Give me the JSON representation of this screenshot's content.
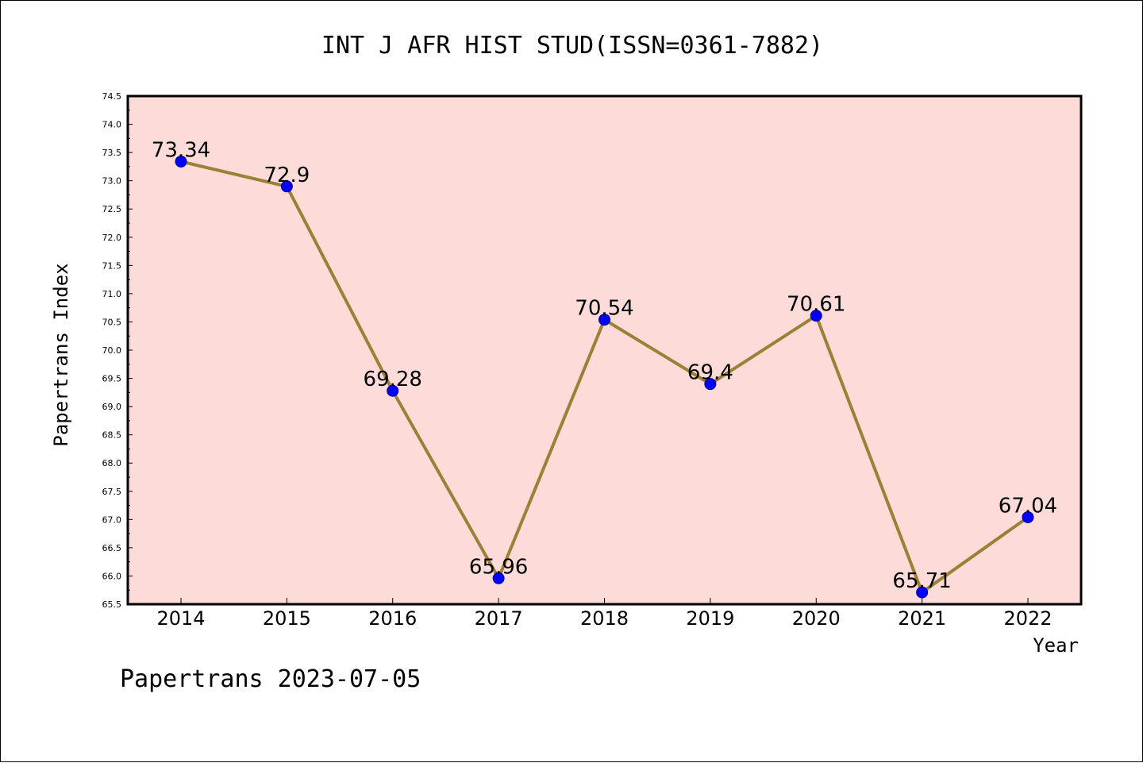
{
  "chart_data": {
    "type": "line",
    "title": "INT J AFR HIST STUD(ISSN=0361-7882)",
    "xlabel": "Year",
    "ylabel": "Papertrans Index",
    "categories": [
      "2014",
      "2015",
      "2016",
      "2017",
      "2018",
      "2019",
      "2020",
      "2021",
      "2022"
    ],
    "values": [
      73.34,
      72.9,
      69.28,
      65.96,
      70.54,
      69.4,
      70.61,
      65.71,
      67.04
    ],
    "data_labels": [
      "73.34",
      "72.9",
      "69.28",
      "65.96",
      "70.54",
      "69.4",
      "70.61",
      "65.71",
      "67.04"
    ],
    "ylim": [
      65.5,
      74.5
    ],
    "yticks": [
      "65.5",
      "66.0",
      "66.5",
      "67.0",
      "67.5",
      "68.0",
      "68.5",
      "69.0",
      "69.5",
      "70.0",
      "70.5",
      "71.0",
      "71.5",
      "72.0",
      "72.5",
      "73.0",
      "73.5",
      "74.0",
      "74.5"
    ],
    "grid": false,
    "colors": {
      "plot_background": "#fddbd8",
      "line": "#9b8036",
      "marker": "#0000ff",
      "marker_edge": "#00008b"
    }
  },
  "footer": "Papertrans 2023-07-05"
}
